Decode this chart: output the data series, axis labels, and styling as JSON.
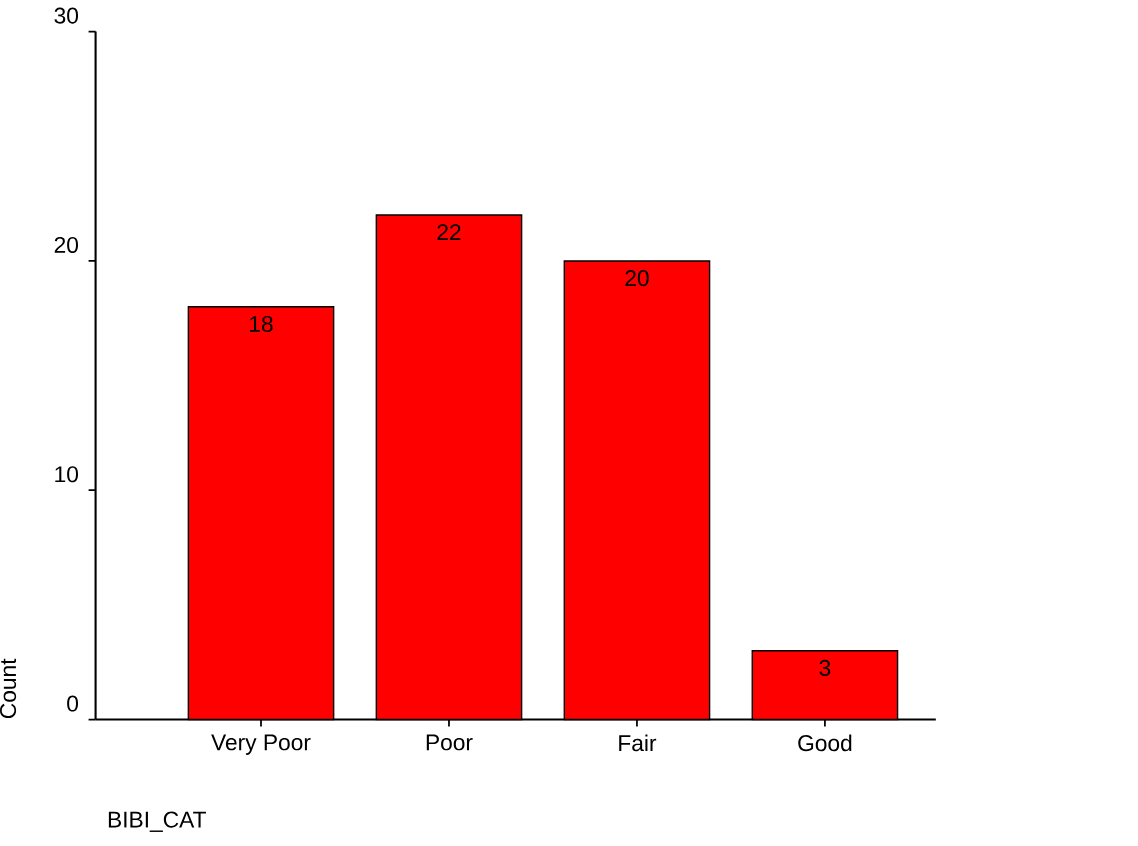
{
  "chart_data": {
    "type": "bar",
    "xlabel": "BIBI_CAT",
    "ylabel": "Count",
    "categories": [
      "Very Poor",
      "Poor",
      "Fair",
      "Good"
    ],
    "values": [
      18,
      22,
      20,
      3
    ],
    "color": "#ff0000",
    "ylim": [
      0,
      30
    ],
    "yticks": [
      0,
      10,
      20,
      30
    ],
    "data_labels": true
  }
}
